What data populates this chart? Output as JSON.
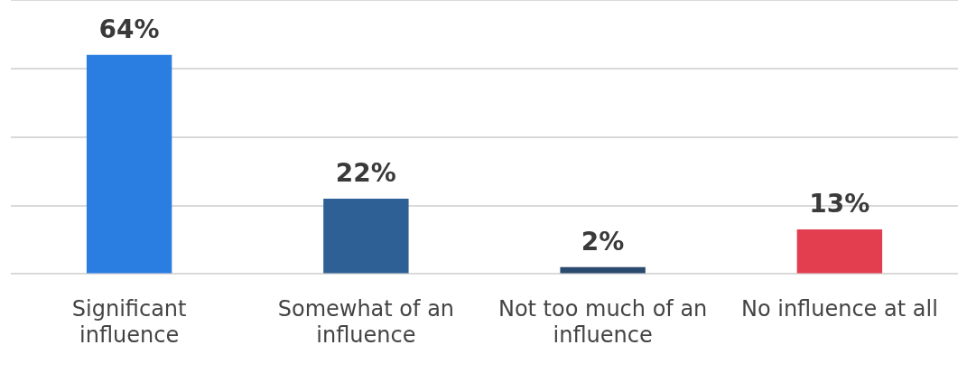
{
  "chart_data": {
    "type": "bar",
    "categories": [
      "Significant influence",
      "Somewhat of an influence",
      "Not too much of an influence",
      "No influence at all"
    ],
    "values": [
      64,
      22,
      2,
      13
    ],
    "colors": [
      "#2a7de1",
      "#2e6096",
      "#2a4a6e",
      "#e33e50"
    ],
    "ylim": [
      0,
      80
    ],
    "yticks": [
      {
        "value": 0,
        "label": null
      },
      {
        "value": 20,
        "label": null
      },
      {
        "value": 40,
        "label": null
      },
      {
        "value": 60,
        "label": null
      },
      {
        "value": 80,
        "label": null
      }
    ],
    "value_labels": [
      "64%",
      "22%",
      "2%",
      "13%"
    ],
    "grid": "y",
    "tick_labels": "x",
    "legend": false
  }
}
